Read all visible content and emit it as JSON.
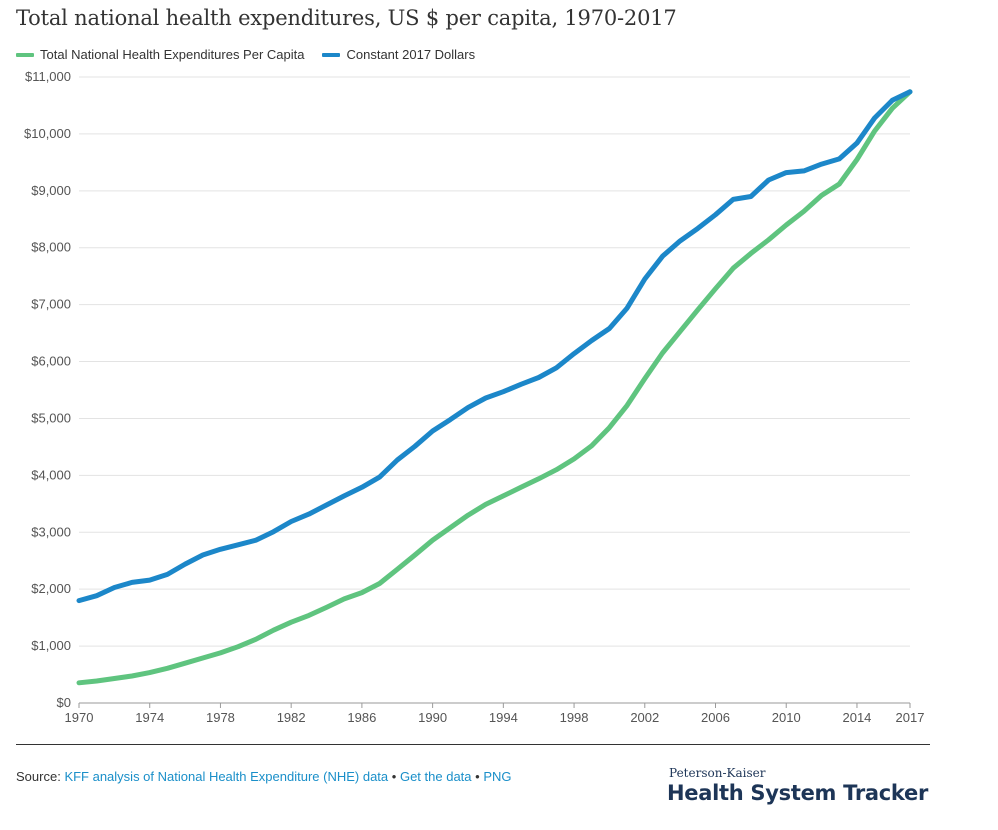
{
  "chart_data": {
    "type": "line",
    "title": "Total national health expenditures, US $ per capita, 1970-2017",
    "xlabel": "",
    "ylabel": "",
    "xlim": [
      1970,
      2017
    ],
    "ylim": [
      0,
      11000
    ],
    "grid": true,
    "legend_position": "top-left",
    "x_ticks": [
      1970,
      1974,
      1978,
      1982,
      1986,
      1990,
      1994,
      1998,
      2002,
      2006,
      2010,
      2014,
      2017
    ],
    "x_tick_labels": [
      "1970",
      "1974",
      "1978",
      "1982",
      "1986",
      "1990",
      "1994",
      "1998",
      "2002",
      "2006",
      "2010",
      "2014",
      "2017"
    ],
    "y_ticks": [
      0,
      1000,
      2000,
      3000,
      4000,
      5000,
      6000,
      7000,
      8000,
      9000,
      10000,
      11000
    ],
    "y_tick_labels": [
      "$0",
      "$1,000",
      "$2,000",
      "$3,000",
      "$4,000",
      "$5,000",
      "$6,000",
      "$7,000",
      "$8,000",
      "$9,000",
      "$10,000",
      "$11,000"
    ],
    "x": [
      1970,
      1971,
      1972,
      1973,
      1974,
      1975,
      1976,
      1977,
      1978,
      1979,
      1980,
      1981,
      1982,
      1983,
      1984,
      1985,
      1986,
      1987,
      1988,
      1989,
      1990,
      1991,
      1992,
      1993,
      1994,
      1995,
      1996,
      1997,
      1998,
      1999,
      2000,
      2001,
      2002,
      2003,
      2004,
      2005,
      2006,
      2007,
      2008,
      2009,
      2010,
      2011,
      2012,
      2013,
      2014,
      2015,
      2016,
      2017
    ],
    "series": [
      {
        "name": "Total National Health Expenditures Per Capita",
        "color": "#5fc47f",
        "values": [
          355,
          386,
          430,
          475,
          535,
          610,
          700,
          790,
          880,
          990,
          1120,
          1280,
          1420,
          1540,
          1680,
          1830,
          1940,
          2100,
          2350,
          2600,
          2860,
          3080,
          3300,
          3490,
          3640,
          3790,
          3940,
          4100,
          4290,
          4520,
          4840,
          5230,
          5700,
          6150,
          6530,
          6910,
          7280,
          7640,
          7900,
          8140,
          8400,
          8640,
          8920,
          9120,
          9550,
          10050,
          10450,
          10740
        ]
      },
      {
        "name": "Constant 2017 Dollars",
        "color": "#1c87c9",
        "values": [
          1800,
          1885,
          2030,
          2120,
          2160,
          2260,
          2440,
          2600,
          2700,
          2780,
          2860,
          3010,
          3190,
          3320,
          3480,
          3640,
          3790,
          3970,
          4270,
          4510,
          4780,
          4980,
          5190,
          5360,
          5470,
          5600,
          5720,
          5890,
          6140,
          6370,
          6580,
          6940,
          7450,
          7850,
          8120,
          8340,
          8580,
          8850,
          8900,
          9190,
          9320,
          9350,
          9470,
          9560,
          9840,
          10280,
          10590,
          10740
        ]
      }
    ]
  },
  "source": {
    "prefix": "Source:",
    "link1": "KFF analysis of National Health Expenditure (NHE) data",
    "sep1": "•",
    "link2": "Get the data",
    "sep2": "•",
    "link3": "PNG"
  },
  "brand": {
    "top": "Peterson-Kaiser",
    "bottom": "Health System Tracker"
  }
}
